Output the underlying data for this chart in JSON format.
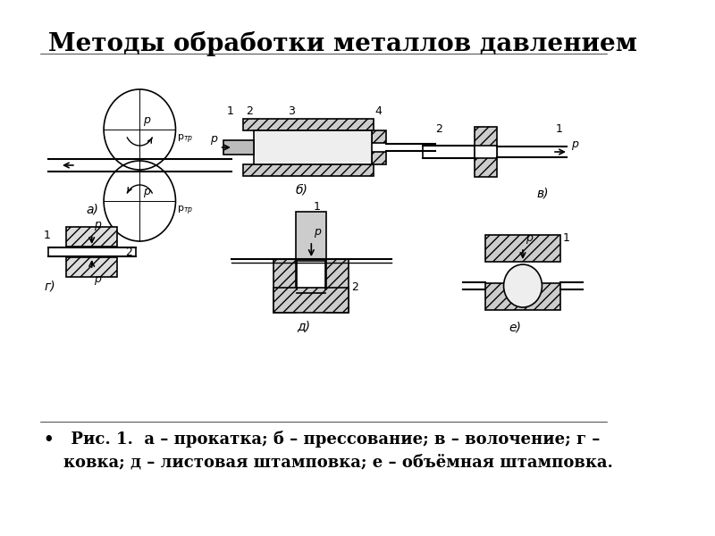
{
  "title": "Методы обработки металлов давлением",
  "caption_line1": "•   Рис. 1.  а – прокатка; б – прессование; в – волочение; г –",
  "caption_line2": "ковка; д – листовая штамповка; е – объёмная штамповка.",
  "bg_color": "#ffffff",
  "text_color": "#000000",
  "title_fontsize": 20,
  "caption_fontsize": 13
}
